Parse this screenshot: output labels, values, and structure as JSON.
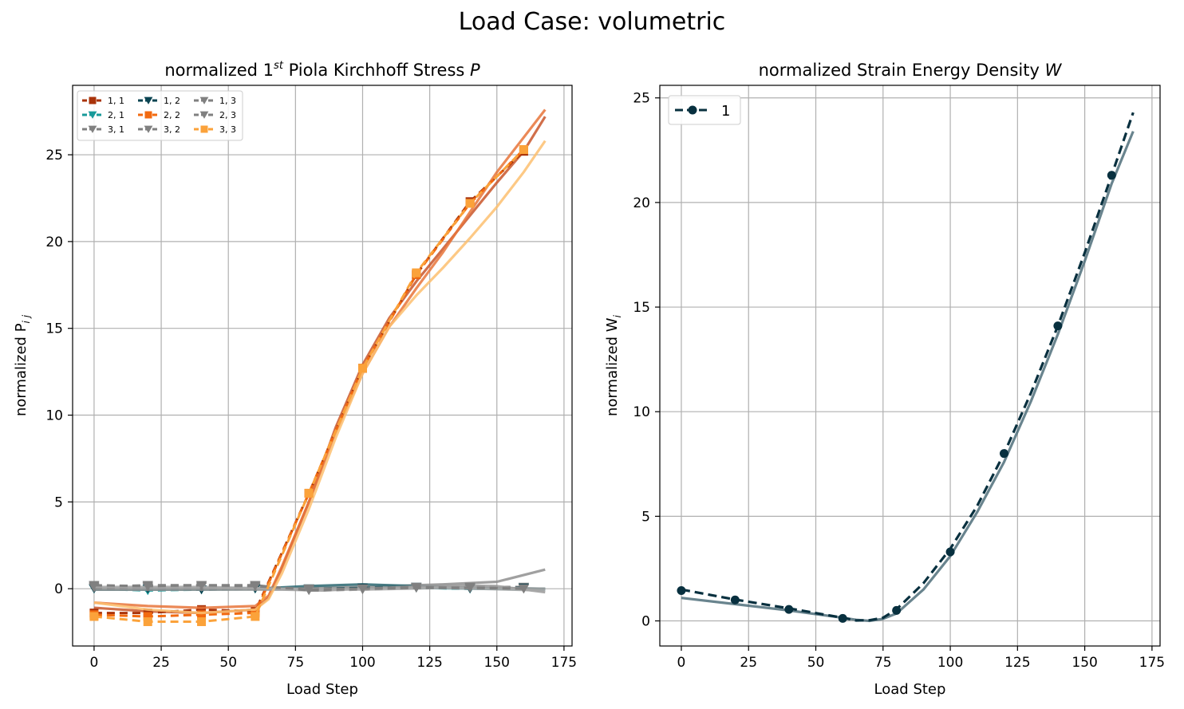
{
  "figure": {
    "suptitle": "Load Case: volumetric"
  },
  "chart_data": [
    {
      "type": "line",
      "title_prefix": "normalized 1",
      "title_sup": "st",
      "title_rest": " Piola Kirchhoff Stress ",
      "title_symbol": "P",
      "xlabel": "Load Step",
      "ylabel": "normalized P",
      "ylabel_sub": "i j",
      "xlim": [
        -8,
        178
      ],
      "ylim": [
        -3.3,
        29.0
      ],
      "xticks": [
        0,
        25,
        50,
        75,
        100,
        125,
        150,
        175
      ],
      "yticks": [
        0,
        5,
        10,
        15,
        20,
        25
      ],
      "grid": true,
      "legend_position": "top-left",
      "legend_columns": 3,
      "legend": [
        {
          "label": "1, 1",
          "color": "#a9330a",
          "marker": "square"
        },
        {
          "label": "2, 1",
          "color": "#189a9a",
          "marker": "triangle-down"
        },
        {
          "label": "3, 1",
          "color": "#808080",
          "marker": "triangle-down"
        },
        {
          "label": "1, 2",
          "color": "#0a4452",
          "marker": "triangle-down"
        },
        {
          "label": "2, 2",
          "color": "#f26a10",
          "marker": "square"
        },
        {
          "label": "3, 2",
          "color": "#808080",
          "marker": "triangle-down"
        },
        {
          "label": "1, 3",
          "color": "#808080",
          "marker": "triangle-down"
        },
        {
          "label": "2, 3",
          "color": "#808080",
          "marker": "triangle-down"
        },
        {
          "label": "3, 3",
          "color": "#fba23a",
          "marker": "square"
        }
      ],
      "series": [
        {
          "name": "1, 1",
          "color": "#a9330a",
          "fit_color": "#c9562a",
          "marker": "square",
          "x": [
            0,
            20,
            40,
            60,
            80,
            100,
            120,
            140,
            160
          ],
          "y": [
            -1.4,
            -1.4,
            -1.2,
            -1.3,
            5.5,
            12.7,
            18.1,
            22.3,
            25.2
          ],
          "fit_x": [
            0,
            20,
            40,
            60,
            65,
            70,
            80,
            90,
            100,
            110,
            120,
            130,
            140,
            150,
            160,
            168
          ],
          "fit_y": [
            -1.1,
            -1.3,
            -1.4,
            -1.2,
            -0.5,
            1.2,
            5.0,
            9.3,
            12.9,
            15.6,
            17.7,
            19.6,
            21.5,
            23.4,
            25.2,
            27.2
          ]
        },
        {
          "name": "2, 1",
          "color": "#189a9a",
          "fit_color": "#4a9aa0",
          "marker": "triangle-down",
          "x": [
            0,
            20,
            40,
            60,
            80,
            100,
            120,
            140,
            160
          ],
          "y": [
            0.0,
            -0.1,
            -0.05,
            0.0,
            0.0,
            0.0,
            0.05,
            0.0,
            0.05
          ],
          "fit_x": [
            0,
            40,
            80,
            120,
            168
          ],
          "fit_y": [
            -0.05,
            -0.05,
            0.0,
            0.05,
            -0.05
          ]
        },
        {
          "name": "3, 1",
          "color": "#808080",
          "fit_color": "#8f8f8f",
          "marker": "triangle-down",
          "x": [
            0,
            20,
            40,
            60,
            80,
            100,
            120,
            140,
            160
          ],
          "y": [
            0.15,
            0.1,
            0.15,
            0.05,
            0.0,
            0.0,
            0.05,
            0.1,
            0.1
          ],
          "fit_x": [
            0,
            40,
            70,
            100,
            130,
            150,
            168
          ],
          "fit_y": [
            0.0,
            0.0,
            0.0,
            0.1,
            0.25,
            0.4,
            1.1
          ]
        },
        {
          "name": "1, 2",
          "color": "#0a4452",
          "fit_color": "#2a6670",
          "marker": "triangle-down",
          "x": [
            0,
            20,
            40,
            60,
            80,
            100,
            120,
            140,
            160
          ],
          "y": [
            0.0,
            0.0,
            -0.05,
            0.0,
            0.0,
            0.05,
            0.1,
            0.0,
            0.05
          ],
          "fit_x": [
            0,
            30,
            60,
            80,
            100,
            120,
            140,
            168
          ],
          "fit_y": [
            -0.05,
            -0.05,
            0.0,
            0.15,
            0.25,
            0.15,
            0.05,
            0.0
          ]
        },
        {
          "name": "2, 2",
          "color": "#f26a10",
          "fit_color": "#e8743a",
          "marker": "square",
          "x": [
            0,
            20,
            40,
            60,
            80,
            100,
            120,
            140,
            160
          ],
          "y": [
            -1.5,
            -1.6,
            -1.5,
            -1.4,
            5.5,
            12.7,
            18.1,
            22.2,
            25.3
          ],
          "fit_x": [
            0,
            20,
            40,
            60,
            65,
            70,
            80,
            90,
            100,
            110,
            120,
            130,
            140,
            150,
            160,
            168
          ],
          "fit_y": [
            -0.8,
            -1.0,
            -1.1,
            -1.0,
            -0.4,
            1.3,
            5.0,
            9.0,
            12.4,
            15.1,
            17.3,
            19.4,
            21.7,
            24.0,
            26.0,
            27.6
          ]
        },
        {
          "name": "3, 2",
          "color": "#808080",
          "fit_color": "#9a9a9a",
          "marker": "triangle-down",
          "x": [
            0,
            20,
            40,
            60,
            80,
            100,
            120,
            140,
            160
          ],
          "y": [
            0.1,
            0.2,
            0.2,
            0.2,
            -0.1,
            -0.05,
            0.05,
            0.1,
            0.0
          ],
          "fit_x": [
            0,
            40,
            70,
            85,
            100,
            130,
            150,
            168
          ],
          "fit_y": [
            -0.05,
            -0.05,
            -0.05,
            -0.1,
            0.0,
            0.2,
            0.15,
            -0.2
          ]
        },
        {
          "name": "1, 3",
          "color": "#808080",
          "fit_color": "#a0a0a0",
          "marker": "triangle-down",
          "x": [
            0,
            20,
            40,
            60,
            80,
            100,
            120,
            140,
            160
          ],
          "y": [
            0.05,
            0.1,
            0.1,
            0.1,
            0.0,
            0.0,
            0.1,
            0.05,
            0.0
          ],
          "fit_x": [
            0,
            40,
            70,
            100,
            130,
            168
          ],
          "fit_y": [
            0.05,
            0.05,
            0.0,
            0.0,
            0.1,
            0.0
          ]
        },
        {
          "name": "2, 3",
          "color": "#808080",
          "fit_color": "#a8a8a8",
          "marker": "triangle-down",
          "x": [
            0,
            20,
            40,
            60,
            80,
            100,
            120,
            140,
            160
          ],
          "y": [
            0.2,
            0.15,
            0.2,
            0.15,
            -0.05,
            0.0,
            0.05,
            0.05,
            0.0
          ],
          "fit_x": [
            0,
            40,
            70,
            100,
            130,
            168
          ],
          "fit_y": [
            0.1,
            0.1,
            0.0,
            -0.05,
            0.05,
            -0.1
          ]
        },
        {
          "name": "3, 3",
          "color": "#fba23a",
          "fit_color": "#fdc070",
          "marker": "square",
          "x": [
            0,
            20,
            40,
            60,
            80,
            100,
            120,
            140,
            160
          ],
          "y": [
            -1.6,
            -1.9,
            -1.9,
            -1.6,
            5.5,
            12.7,
            18.2,
            22.2,
            25.3
          ],
          "fit_x": [
            0,
            20,
            40,
            60,
            65,
            70,
            80,
            90,
            100,
            110,
            120,
            130,
            140,
            150,
            160,
            168
          ],
          "fit_y": [
            -0.8,
            -1.2,
            -1.4,
            -1.2,
            -0.6,
            0.9,
            4.6,
            8.7,
            12.4,
            15.1,
            16.9,
            18.5,
            20.2,
            22.0,
            24.0,
            25.8
          ]
        }
      ]
    },
    {
      "type": "line",
      "title_prefix": "normalized Strain Energy Density ",
      "title_symbol": "W",
      "xlabel": "Load Step",
      "ylabel": "normalized W",
      "ylabel_sub": "i",
      "xlim": [
        -8,
        178
      ],
      "ylim": [
        -1.2,
        25.6
      ],
      "xticks": [
        0,
        25,
        50,
        75,
        100,
        125,
        150,
        175
      ],
      "yticks": [
        0,
        5,
        10,
        15,
        20,
        25
      ],
      "grid": true,
      "legend_position": "top-left",
      "legend": [
        {
          "label": "1",
          "color": "#08303f",
          "marker": "circle"
        }
      ],
      "series": [
        {
          "name": "1",
          "color": "#08303f",
          "fit_color": "#4f6e7a",
          "marker": "circle",
          "x": [
            0,
            20,
            40,
            60,
            80,
            100,
            120,
            140,
            160
          ],
          "y": [
            1.45,
            1.0,
            0.55,
            0.12,
            0.5,
            3.3,
            8.0,
            14.1,
            21.3
          ],
          "dashed_x": [
            0,
            20,
            40,
            60,
            65,
            70,
            75,
            80,
            90,
            100,
            110,
            120,
            130,
            140,
            150,
            160,
            168
          ],
          "dashed_y": [
            1.5,
            1.02,
            0.6,
            0.15,
            0.02,
            0.03,
            0.15,
            0.55,
            1.8,
            3.45,
            5.5,
            8.0,
            10.9,
            14.1,
            17.6,
            21.3,
            24.3
          ],
          "fit_x": [
            0,
            20,
            40,
            60,
            65,
            70,
            75,
            80,
            90,
            100,
            110,
            120,
            130,
            140,
            150,
            160,
            168
          ],
          "fit_y": [
            1.1,
            0.8,
            0.5,
            0.15,
            0.05,
            0.0,
            0.1,
            0.35,
            1.5,
            3.1,
            5.2,
            7.6,
            10.5,
            13.7,
            17.2,
            20.9,
            23.4
          ]
        }
      ]
    }
  ]
}
